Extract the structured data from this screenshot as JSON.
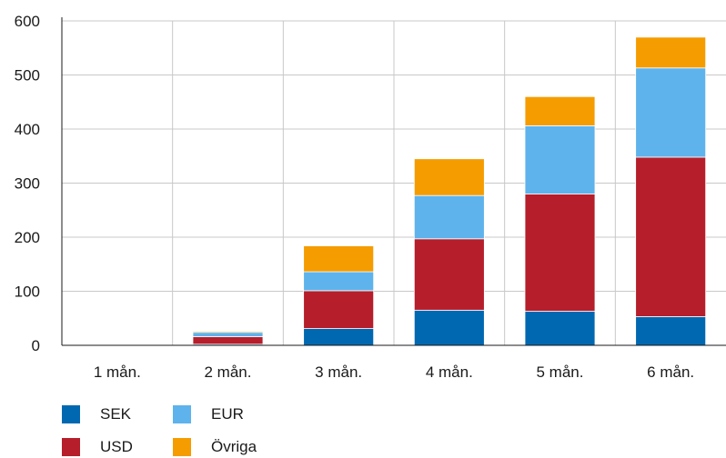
{
  "chart_data": {
    "type": "bar",
    "stacked": true,
    "categories": [
      "1 mån.",
      "2 mån.",
      "3 mån.",
      "4 mån.",
      "5 mån.",
      "6 mån."
    ],
    "series": [
      {
        "name": "SEK",
        "color": "#0068B1",
        "values": [
          0,
          2,
          31,
          65,
          63,
          53
        ]
      },
      {
        "name": "USD",
        "color": "#B51E2A",
        "values": [
          0,
          14,
          70,
          132,
          217,
          295
        ]
      },
      {
        "name": "EUR",
        "color": "#5EB3EC",
        "values": [
          0,
          8,
          35,
          80,
          126,
          165
        ]
      },
      {
        "name": "Övriga",
        "color": "#F59C00",
        "values": [
          0,
          2,
          48,
          68,
          54,
          57
        ]
      }
    ],
    "yticks": [
      "0",
      "100",
      "200",
      "300",
      "400",
      "500",
      "600"
    ],
    "ylim": [
      0,
      600
    ],
    "grid": true,
    "legend_position": "bottom-left",
    "title": "",
    "xlabel": "",
    "ylabel": ""
  }
}
